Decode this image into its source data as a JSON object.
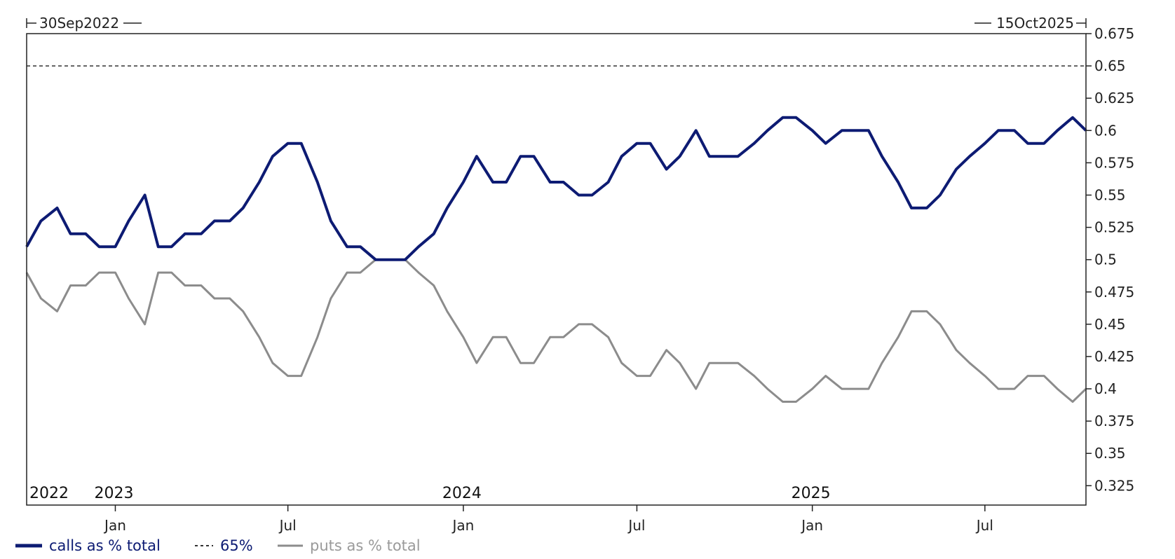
{
  "chart_data": {
    "type": "line",
    "date_range": {
      "start_label": "30Sep2022",
      "end_label": "15Oct2025"
    },
    "x_axis": {
      "month_ticks": [
        {
          "label": "Jan",
          "date": "2023-01-01"
        },
        {
          "label": "Jul",
          "date": "2023-07-01"
        },
        {
          "label": "Jan",
          "date": "2024-01-01"
        },
        {
          "label": "Jul",
          "date": "2024-07-01"
        },
        {
          "label": "Jan",
          "date": "2025-01-01"
        },
        {
          "label": "Jul",
          "date": "2025-07-01"
        }
      ],
      "year_labels": [
        {
          "label": "2022",
          "date": "2022-09-30"
        },
        {
          "label": "2023",
          "date": "2023-01-01"
        },
        {
          "label": "2024",
          "date": "2024-01-01"
        },
        {
          "label": "2025",
          "date": "2025-01-01"
        }
      ]
    },
    "y_axis": {
      "ylim": [
        0.31,
        0.675
      ],
      "ticks": [
        "0.675",
        "0.65",
        "0.625",
        "0.6",
        "0.575",
        "0.55",
        "0.525",
        "0.5",
        "0.475",
        "0.45",
        "0.425",
        "0.4",
        "0.375",
        "0.35",
        "0.325"
      ],
      "position": "right"
    },
    "reference_line": {
      "name": "65%",
      "value": 0.65,
      "style": "dashed",
      "color": "#333333"
    },
    "series": [
      {
        "name": "calls as % total",
        "color": "#0d1b73",
        "x": [
          "2022-09-30",
          "2022-10-15",
          "2022-11-01",
          "2022-11-15",
          "2022-12-01",
          "2022-12-15",
          "2023-01-01",
          "2023-01-15",
          "2023-02-01",
          "2023-02-15",
          "2023-03-01",
          "2023-03-15",
          "2023-04-01",
          "2023-04-15",
          "2023-05-01",
          "2023-05-15",
          "2023-06-01",
          "2023-06-15",
          "2023-07-01",
          "2023-07-15",
          "2023-08-01",
          "2023-08-15",
          "2023-09-01",
          "2023-09-15",
          "2023-10-01",
          "2023-10-15",
          "2023-11-01",
          "2023-11-15",
          "2023-12-01",
          "2023-12-15",
          "2024-01-01",
          "2024-01-15",
          "2024-02-01",
          "2024-02-15",
          "2024-03-01",
          "2024-03-15",
          "2024-04-01",
          "2024-04-15",
          "2024-05-01",
          "2024-05-15",
          "2024-06-01",
          "2024-06-15",
          "2024-07-01",
          "2024-07-15",
          "2024-08-01",
          "2024-08-15",
          "2024-09-01",
          "2024-09-15",
          "2024-10-01",
          "2024-10-15",
          "2024-11-01",
          "2024-11-15",
          "2024-12-01",
          "2024-12-15",
          "2025-01-01",
          "2025-01-15",
          "2025-02-01",
          "2025-02-15",
          "2025-03-01",
          "2025-03-15",
          "2025-04-01",
          "2025-04-15",
          "2025-05-01",
          "2025-05-15",
          "2025-06-01",
          "2025-06-15",
          "2025-07-01",
          "2025-07-15",
          "2025-08-01",
          "2025-08-15",
          "2025-09-01",
          "2025-09-15",
          "2025-10-01",
          "2025-10-15"
        ],
        "values": [
          0.51,
          0.53,
          0.54,
          0.52,
          0.52,
          0.51,
          0.51,
          0.53,
          0.55,
          0.51,
          0.51,
          0.52,
          0.52,
          0.53,
          0.53,
          0.54,
          0.56,
          0.58,
          0.59,
          0.59,
          0.56,
          0.53,
          0.51,
          0.51,
          0.5,
          0.5,
          0.5,
          0.51,
          0.52,
          0.54,
          0.56,
          0.58,
          0.56,
          0.56,
          0.58,
          0.58,
          0.56,
          0.56,
          0.55,
          0.55,
          0.56,
          0.58,
          0.59,
          0.59,
          0.57,
          0.58,
          0.6,
          0.58,
          0.58,
          0.58,
          0.59,
          0.6,
          0.61,
          0.61,
          0.6,
          0.59,
          0.6,
          0.6,
          0.6,
          0.58,
          0.56,
          0.54,
          0.54,
          0.55,
          0.57,
          0.58,
          0.59,
          0.6,
          0.6,
          0.59,
          0.59,
          0.6,
          0.61,
          0.6
        ]
      },
      {
        "name": "puts as % total",
        "color": "#8c8c8c",
        "x": [
          "2022-09-30",
          "2022-10-15",
          "2022-11-01",
          "2022-11-15",
          "2022-12-01",
          "2022-12-15",
          "2023-01-01",
          "2023-01-15",
          "2023-02-01",
          "2023-02-15",
          "2023-03-01",
          "2023-03-15",
          "2023-04-01",
          "2023-04-15",
          "2023-05-01",
          "2023-05-15",
          "2023-06-01",
          "2023-06-15",
          "2023-07-01",
          "2023-07-15",
          "2023-08-01",
          "2023-08-15",
          "2023-09-01",
          "2023-09-15",
          "2023-10-01",
          "2023-10-15",
          "2023-11-01",
          "2023-11-15",
          "2023-12-01",
          "2023-12-15",
          "2024-01-01",
          "2024-01-15",
          "2024-02-01",
          "2024-02-15",
          "2024-03-01",
          "2024-03-15",
          "2024-04-01",
          "2024-04-15",
          "2024-05-01",
          "2024-05-15",
          "2024-06-01",
          "2024-06-15",
          "2024-07-01",
          "2024-07-15",
          "2024-08-01",
          "2024-08-15",
          "2024-09-01",
          "2024-09-15",
          "2024-10-01",
          "2024-10-15",
          "2024-11-01",
          "2024-11-15",
          "2024-12-01",
          "2024-12-15",
          "2025-01-01",
          "2025-01-15",
          "2025-02-01",
          "2025-02-15",
          "2025-03-01",
          "2025-03-15",
          "2025-04-01",
          "2025-04-15",
          "2025-05-01",
          "2025-05-15",
          "2025-06-01",
          "2025-06-15",
          "2025-07-01",
          "2025-07-15",
          "2025-08-01",
          "2025-08-15",
          "2025-09-01",
          "2025-09-15",
          "2025-10-01",
          "2025-10-15"
        ],
        "values": [
          0.49,
          0.47,
          0.46,
          0.48,
          0.48,
          0.49,
          0.49,
          0.47,
          0.45,
          0.49,
          0.49,
          0.48,
          0.48,
          0.47,
          0.47,
          0.46,
          0.44,
          0.42,
          0.41,
          0.41,
          0.44,
          0.47,
          0.49,
          0.49,
          0.5,
          0.5,
          0.5,
          0.49,
          0.48,
          0.46,
          0.44,
          0.42,
          0.44,
          0.44,
          0.42,
          0.42,
          0.44,
          0.44,
          0.45,
          0.45,
          0.44,
          0.42,
          0.41,
          0.41,
          0.43,
          0.42,
          0.4,
          0.42,
          0.42,
          0.42,
          0.41,
          0.4,
          0.39,
          0.39,
          0.4,
          0.41,
          0.4,
          0.4,
          0.4,
          0.42,
          0.44,
          0.46,
          0.46,
          0.45,
          0.43,
          0.42,
          0.41,
          0.4,
          0.4,
          0.41,
          0.41,
          0.4,
          0.39,
          0.4
        ]
      }
    ],
    "legend": {
      "placement": "bottom-left",
      "entries": [
        {
          "label": "calls as % total",
          "color": "#0d1b73",
          "style": "solid-thick"
        },
        {
          "label": "65%",
          "color": "#333333",
          "style": "dashed"
        },
        {
          "label": "puts as % total",
          "color": "#8c8c8c",
          "style": "solid"
        }
      ]
    }
  }
}
